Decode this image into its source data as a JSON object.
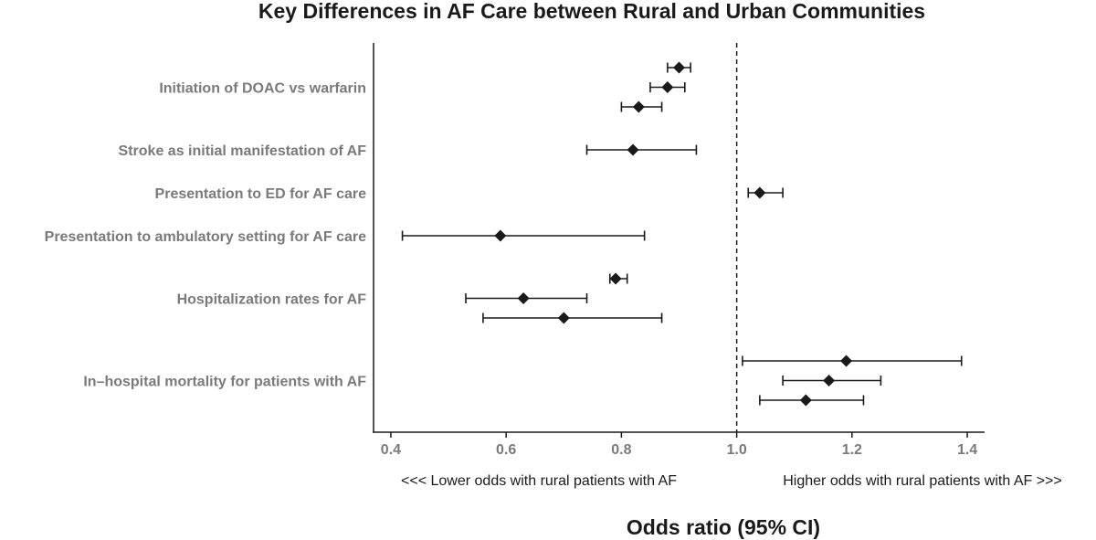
{
  "chart_data": {
    "type": "forest",
    "title": "Key Differences in AF Care between Rural and Urban Communities",
    "xlabel": "Odds ratio (95% CI)",
    "xlim": [
      0.37,
      1.43
    ],
    "xticks": [
      0.4,
      0.6,
      0.8,
      1.0,
      1.2,
      1.4
    ],
    "xtick_labels": [
      "0.4",
      "0.6",
      "0.8",
      "1.0",
      "1.2",
      "1.4"
    ],
    "reference_line": 1.0,
    "direction_labels": {
      "left": "<<< Lower odds with rural patients with AF",
      "right": "Higher odds with rural patients with AF >>>"
    },
    "categories": [
      {
        "label": "Initiation of DOAC vs warfarin",
        "estimates": [
          {
            "or": 0.9,
            "lo": 0.88,
            "hi": 0.92
          },
          {
            "or": 0.88,
            "lo": 0.85,
            "hi": 0.91
          },
          {
            "or": 0.83,
            "lo": 0.8,
            "hi": 0.87
          }
        ]
      },
      {
        "label": "Stroke as initial manifestation of AF",
        "estimates": [
          {
            "or": 0.82,
            "lo": 0.74,
            "hi": 0.93
          }
        ]
      },
      {
        "label": "Presentation to ED for AF care",
        "estimates": [
          {
            "or": 1.04,
            "lo": 1.02,
            "hi": 1.08
          }
        ]
      },
      {
        "label": "Presentation to ambulatory setting for AF care",
        "estimates": [
          {
            "or": 0.59,
            "lo": 0.42,
            "hi": 0.84
          }
        ]
      },
      {
        "label": "Hospitalization rates for AF",
        "estimates": [
          {
            "or": 0.79,
            "lo": 0.78,
            "hi": 0.81
          },
          {
            "or": 0.63,
            "lo": 0.53,
            "hi": 0.74
          },
          {
            "or": 0.7,
            "lo": 0.56,
            "hi": 0.87
          }
        ]
      },
      {
        "label": "In–hospital mortality for patients with AF",
        "estimates": [
          {
            "or": 1.19,
            "lo": 1.01,
            "hi": 1.39
          },
          {
            "or": 1.16,
            "lo": 1.08,
            "hi": 1.25
          },
          {
            "or": 1.12,
            "lo": 1.04,
            "hi": 1.22
          }
        ]
      }
    ],
    "colors": {
      "marks": "#1a1a1a",
      "labels": "#7a7a7a"
    },
    "grid": false,
    "legend": "none"
  }
}
